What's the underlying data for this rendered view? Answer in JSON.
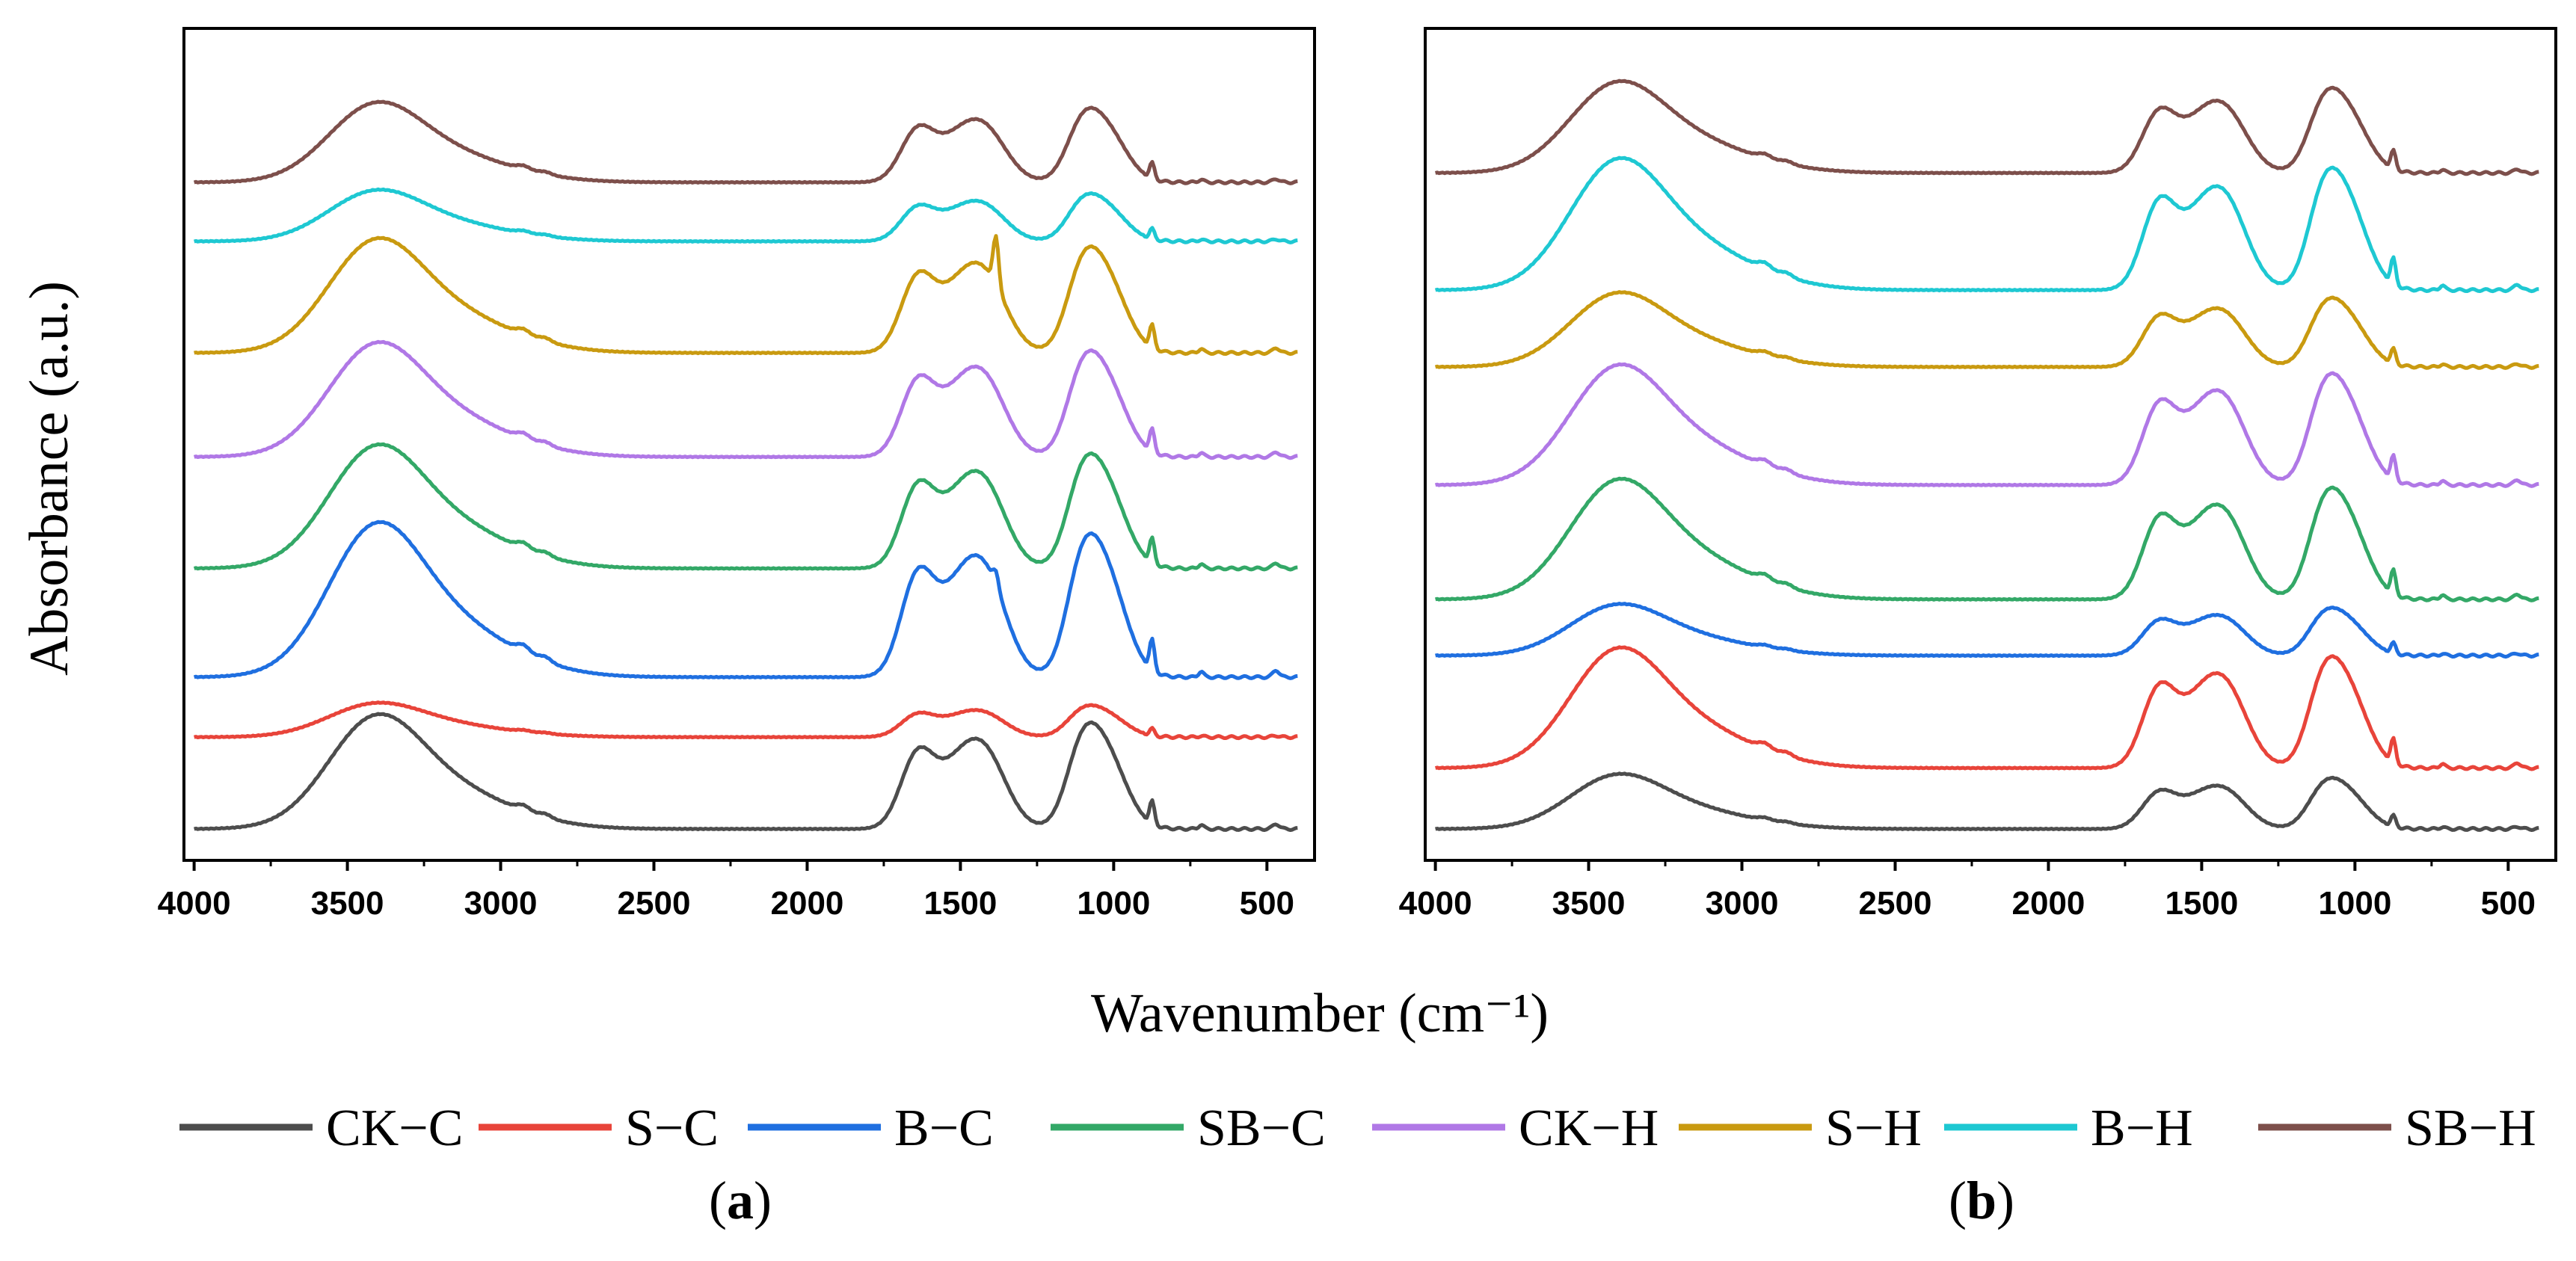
{
  "figure": {
    "ylabel": "Absorbance (a.u.)",
    "xlabel": "Wavenumber (cm⁻¹)",
    "legend": [
      {
        "label": "CK−C",
        "color": "#4d4d4d"
      },
      {
        "label": "S−C",
        "color": "#e8443a"
      },
      {
        "label": "B−C",
        "color": "#1f6fe0"
      },
      {
        "label": "SB−C",
        "color": "#33a867"
      },
      {
        "label": "CK−H",
        "color": "#b078e6"
      },
      {
        "label": "S−H",
        "color": "#c99a10"
      },
      {
        "label": "B−H",
        "color": "#1ec8d2"
      },
      {
        "label": "SB−H",
        "color": "#7d4f4b"
      }
    ],
    "panels": [
      {
        "label": "a"
      },
      {
        "label": "b"
      }
    ]
  },
  "chart_data": [
    {
      "type": "line",
      "panel": "a",
      "xlim": [
        4000,
        400
      ],
      "x_reversed": true,
      "xticks": [
        4000,
        3500,
        3000,
        2500,
        2000,
        1500,
        1000,
        500
      ],
      "y_ticks_shown": false,
      "series": [
        {
          "name": "CK−C",
          "color": "#4d4d4d",
          "offset": 0.0,
          "scale": 1.0,
          "sharp1384": 0.0
        },
        {
          "name": "S−C",
          "color": "#e8443a",
          "offset": 0.98,
          "scale": 0.3,
          "sharp1384": 0.0
        },
        {
          "name": "B−C",
          "color": "#1f6fe0",
          "offset": 1.62,
          "scale": 1.35,
          "sharp1384": 0.12
        },
        {
          "name": "SB−C",
          "color": "#33a867",
          "offset": 2.78,
          "scale": 1.08,
          "sharp1384": 0.0
        },
        {
          "name": "CK−H",
          "color": "#b078e6",
          "offset": 3.97,
          "scale": 1.0,
          "sharp1384": 0.0
        },
        {
          "name": "S−H",
          "color": "#c99a10",
          "offset": 5.08,
          "scale": 1.0,
          "sharp1384": 0.55
        },
        {
          "name": "B−H",
          "color": "#1ec8d2",
          "offset": 6.27,
          "scale": 0.45,
          "sharp1384": 0.0
        },
        {
          "name": "SB−H",
          "color": "#7d4f4b",
          "offset": 6.9,
          "scale": 0.7,
          "sharp1384": 0.0
        }
      ]
    },
    {
      "type": "line",
      "panel": "b",
      "xlim": [
        4000,
        400
      ],
      "x_reversed": true,
      "xticks": [
        4000,
        3500,
        3000,
        2500,
        2000,
        1500,
        1000,
        500
      ],
      "y_ticks_shown": false,
      "series": [
        {
          "name": "CK−C",
          "color": "#4d4d4d",
          "offset": 0.0,
          "scale": 0.48,
          "sharp1384": 0.0
        },
        {
          "name": "S−C",
          "color": "#e8443a",
          "offset": 0.65,
          "scale": 1.05,
          "sharp1384": 0.0
        },
        {
          "name": "B−C",
          "color": "#1f6fe0",
          "offset": 1.85,
          "scale": 0.45,
          "sharp1384": 0.0
        },
        {
          "name": "SB−C",
          "color": "#33a867",
          "offset": 2.45,
          "scale": 1.05,
          "sharp1384": 0.0
        },
        {
          "name": "CK−H",
          "color": "#b078e6",
          "offset": 3.67,
          "scale": 1.05,
          "sharp1384": 0.0
        },
        {
          "name": "S−H",
          "color": "#c99a10",
          "offset": 4.93,
          "scale": 0.65,
          "sharp1384": 0.0
        },
        {
          "name": "B−H",
          "color": "#1ec8d2",
          "offset": 5.75,
          "scale": 1.15,
          "sharp1384": 0.0
        },
        {
          "name": "SB−H",
          "color": "#7d4f4b",
          "offset": 7.0,
          "scale": 0.8,
          "sharp1384": 0.0
        }
      ]
    }
  ]
}
